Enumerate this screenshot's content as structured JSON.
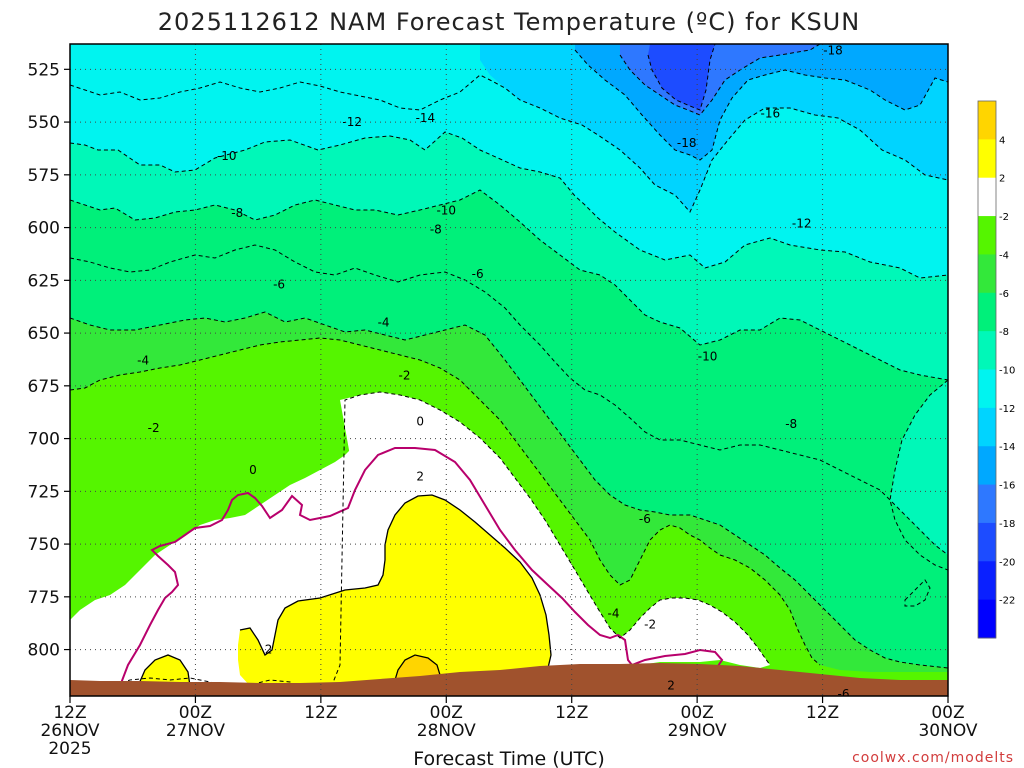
{
  "chart_data": {
    "type": "heatmap",
    "title": "2025112612 NAM Forecast Temperature (ºC) for KSUN",
    "xlabel": "Forecast Time (UTC)",
    "ylabel": "",
    "x_ticks": [
      {
        "top": "12Z",
        "mid": "26NOV",
        "bot": "2025"
      },
      {
        "top": "00Z",
        "mid": "27NOV",
        "bot": ""
      },
      {
        "top": "12Z",
        "mid": "",
        "bot": ""
      },
      {
        "top": "00Z",
        "mid": "28NOV",
        "bot": ""
      },
      {
        "top": "12Z",
        "mid": "",
        "bot": ""
      },
      {
        "top": "00Z",
        "mid": "29NOV",
        "bot": ""
      },
      {
        "top": "12Z",
        "mid": "",
        "bot": ""
      },
      {
        "top": "00Z",
        "mid": "30NOV",
        "bot": ""
      }
    ],
    "x_hours": [
      0,
      12,
      24,
      36,
      48,
      60,
      72,
      84
    ],
    "xlim": [
      0,
      84
    ],
    "y_ticks": [
      525,
      550,
      575,
      600,
      625,
      650,
      675,
      700,
      725,
      750,
      775,
      800
    ],
    "ylim": [
      513,
      822
    ],
    "grid": true,
    "colorbar": {
      "levels": [
        4,
        2,
        -2,
        -4,
        -6,
        -8,
        -10,
        -12,
        -14,
        -16,
        -18,
        -20,
        -22
      ],
      "colors": [
        "#ffd500",
        "#ffff00",
        "#ffffff",
        "#55f500",
        "#33e83a",
        "#00f07a",
        "#00f8b8",
        "#00f4f0",
        "#00d4ff",
        "#00a8ff",
        "#2e78ff",
        "#1d4cff",
        "#0a20ff",
        "#0000ff"
      ],
      "placement": "right"
    },
    "contour_labels": [
      {
        "text": "-18",
        "hour": 73,
        "p": 516
      },
      {
        "text": "-14",
        "hour": 34,
        "p": 548
      },
      {
        "text": "-12",
        "hour": 27,
        "p": 550
      },
      {
        "text": "-16",
        "hour": 67,
        "p": 546
      },
      {
        "text": "-18",
        "hour": 59,
        "p": 560
      },
      {
        "text": "-10",
        "hour": 15,
        "p": 566
      },
      {
        "text": "-8",
        "hour": 16,
        "p": 593
      },
      {
        "text": "-10",
        "hour": 36,
        "p": 592
      },
      {
        "text": "-12",
        "hour": 70,
        "p": 598
      },
      {
        "text": "-8",
        "hour": 35,
        "p": 601
      },
      {
        "text": "-6",
        "hour": 20,
        "p": 627
      },
      {
        "text": "-6",
        "hour": 39,
        "p": 622
      },
      {
        "text": "-4",
        "hour": 30,
        "p": 645
      },
      {
        "text": "-10",
        "hour": 61,
        "p": 661
      },
      {
        "text": "-4",
        "hour": 7,
        "p": 663
      },
      {
        "text": "-2",
        "hour": 32,
        "p": 670
      },
      {
        "text": "-8",
        "hour": 69,
        "p": 693
      },
      {
        "text": "0",
        "hour": 33.5,
        "p": 692
      },
      {
        "text": "-2",
        "hour": 8,
        "p": 695
      },
      {
        "text": "0",
        "hour": 17.5,
        "p": 715
      },
      {
        "text": "2",
        "hour": 33.5,
        "p": 718
      },
      {
        "text": "-6",
        "hour": 55,
        "p": 738
      },
      {
        "text": "-4",
        "hour": 52,
        "p": 783
      },
      {
        "text": "-2",
        "hour": 55.5,
        "p": 788
      },
      {
        "text": "2",
        "hour": 19,
        "p": 800
      },
      {
        "text": "2",
        "hour": 57.5,
        "p": 817
      },
      {
        "text": "-6",
        "hour": 74,
        "p": 821
      }
    ],
    "temperature_bands": [
      {
        "label": "-22",
        "color": "#1d4cff",
        "top": [
          [
            58,
            513
          ],
          [
            64,
            513
          ],
          [
            66,
            526
          ],
          [
            64,
            533
          ],
          [
            60,
            532
          ],
          [
            58,
            525
          ]
        ]
      },
      {
        "label": "-20",
        "color": "#2e78ff",
        "top": [
          [
            53,
            513
          ],
          [
            70,
            513
          ],
          [
            69,
            545
          ],
          [
            65,
            567
          ],
          [
            62,
            555
          ],
          [
            56,
            553
          ],
          [
            54,
            540
          ]
        ]
      }
    ],
    "ground_level_hpa": 817
  },
  "credit": "coolwx.com/modelts"
}
